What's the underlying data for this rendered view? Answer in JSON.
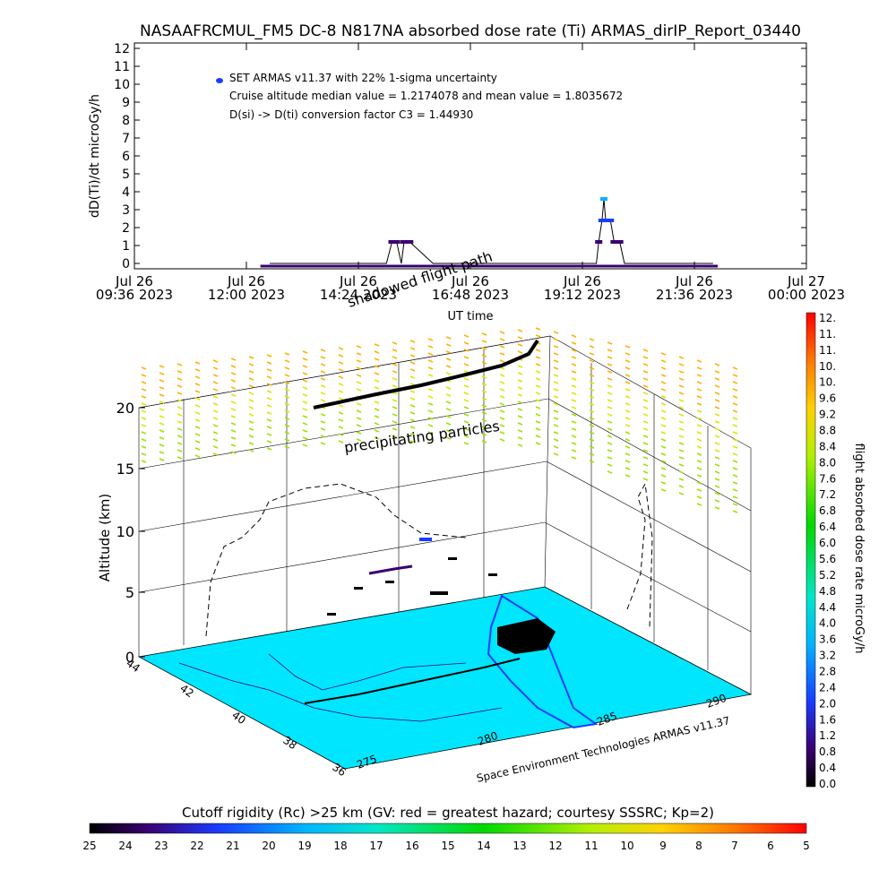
{
  "title": "NASAAFRCMUL_FM5 DC-8   N817NA absorbed dose rate (Ti) ARMAS_dirIP_Report_03440",
  "top_plot": {
    "ylabel": "dD(Ti)/dt microGy/h",
    "xlabel": "UT time",
    "legend_label": "SET ARMAS v11.37 with 22% 1-sigma uncertainty",
    "annot_1": "Cruise altitude median value = 1.2174078 and mean value = 1.8035672",
    "annot_2": "D(si) -> D(ti) conversion factor C3 = 1.44930",
    "xticks": [
      {
        "d": "Jul 26",
        "t": "09:36 2023"
      },
      {
        "d": "Jul 26",
        "t": "12:00 2023"
      },
      {
        "d": "Jul 26",
        "t": "14:24 2023"
      },
      {
        "d": "Jul 26",
        "t": "16:48 2023"
      },
      {
        "d": "Jul 26",
        "t": "19:12 2023"
      },
      {
        "d": "Jul 26",
        "t": "21:36 2023"
      },
      {
        "d": "Jul 27",
        "t": "00:00 2023"
      }
    ],
    "yticks": [
      "0",
      "1",
      "2",
      "3",
      "4",
      "5",
      "6",
      "7",
      "8",
      "9",
      "10",
      "11",
      "12"
    ]
  },
  "chart_data": {
    "type": "line",
    "x_unit": "UT hours since Jul 26 00:00 2023",
    "ylim": [
      0,
      12
    ],
    "series": [
      {
        "name": "SET ARMAS v11.37 with 22% 1-sigma uncertainty",
        "x": [
          12.5,
          13.5,
          14.5,
          15.0,
          15.12,
          15.22,
          15.32,
          15.38,
          15.5,
          16.0,
          17.0,
          18.0,
          19.0,
          19.5,
          19.55,
          19.62,
          19.66,
          19.7,
          19.8,
          19.88,
          19.92,
          20.0,
          20.1,
          20.5,
          21.0,
          22.0
        ],
        "y": [
          0,
          0,
          0,
          0,
          1.2,
          1.2,
          0,
          1.2,
          1.2,
          0,
          0,
          0,
          0,
          0,
          1.2,
          2.4,
          3.6,
          2.4,
          2.4,
          1.2,
          1.2,
          1.2,
          0,
          0,
          0,
          0
        ]
      }
    ]
  },
  "perspective": {
    "zlabel": "Altitude (km)",
    "zticks": [
      "0",
      "5",
      "10",
      "15",
      "20"
    ],
    "lat_ticks": [
      "44",
      "42",
      "40",
      "38",
      "36"
    ],
    "lon_ticks": [
      "275",
      "280",
      "285",
      "290"
    ],
    "annot_shadowed": "shadowed flight path",
    "annot_precip": "precipitating particles",
    "credit": "Space Environment Technologies ARMAS v11.37"
  },
  "colorbar": {
    "label": "flight absorbed dose rate microGy/h",
    "ticks": [
      "12.",
      "11.",
      "11.",
      "10.",
      "10.",
      "9.6",
      "9.2",
      "8.8",
      "8.4",
      "8.0",
      "7.6",
      "7.2",
      "6.8",
      "6.4",
      "6.0",
      "5.6",
      "5.2",
      "4.8",
      "4.4",
      "4.0",
      "3.6",
      "3.2",
      "2.8",
      "2.4",
      "2.0",
      "1.6",
      "1.2",
      "0.8",
      "0.4",
      "0.0"
    ]
  },
  "rigidity_bar": {
    "label": "Cutoff rigidity (Rc) >25 km (GV: red = greatest hazard; courtesy SSSRC; Kp=2)",
    "ticks": [
      "25",
      "24",
      "23",
      "22",
      "21",
      "20",
      "19",
      "18",
      "17",
      "16",
      "15",
      "14",
      "13",
      "12",
      "11",
      "10",
      "9",
      "8",
      "7",
      "6",
      "5"
    ]
  },
  "colors": {
    "sea": "#00e6ff",
    "land": "#00e6ff",
    "track": "#000000",
    "accent_red": "#ff0000"
  }
}
